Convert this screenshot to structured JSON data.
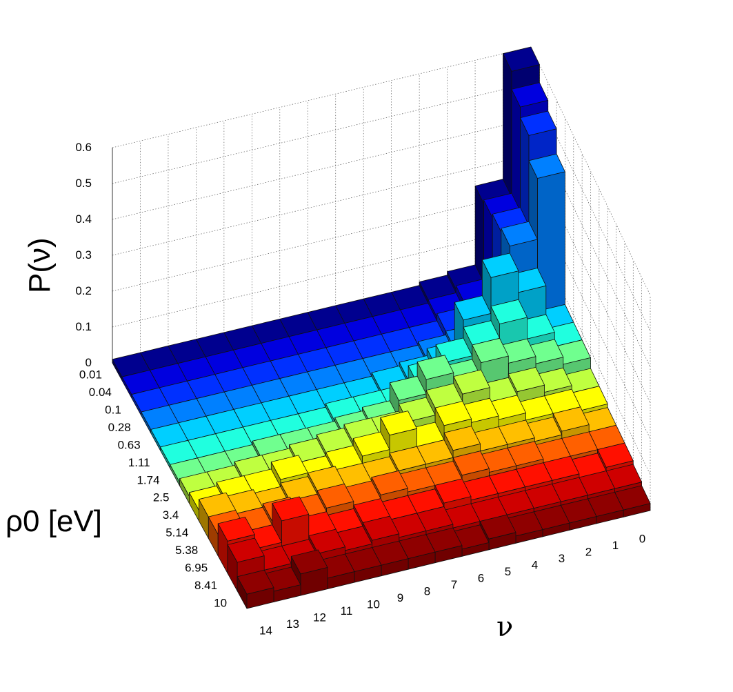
{
  "chart_data": {
    "type": "bar3d",
    "title": "",
    "zlabel": "P(ν)",
    "xlabel": "ν",
    "ylabel": "ρ0 [eV]",
    "x_categories": [
      "0",
      "1",
      "2",
      "3",
      "4",
      "5",
      "6",
      "7",
      "8",
      "9",
      "10",
      "11",
      "12",
      "13",
      "14"
    ],
    "y_categories": [
      "0.01",
      "0.04",
      "0.1",
      "0.28",
      "0.63",
      "1.11",
      "1.74",
      "2.5",
      "3.4",
      "5.14",
      "5.38",
      "6.95",
      "8.41",
      "10"
    ],
    "z_ticks": [
      "0",
      "0.1",
      "0.2",
      "0.3",
      "0.4",
      "0.5",
      "0.6"
    ],
    "zlim": [
      0,
      0.6
    ],
    "colormap": "jet",
    "row_colors": [
      "#00008f",
      "#0000df",
      "#0030ff",
      "#0080ff",
      "#00cfff",
      "#20ffdf",
      "#70ff8f",
      "#bfff40",
      "#ffff00",
      "#ffbf00",
      "#ff6000",
      "#ff1000",
      "#cf0000",
      "#8f0000"
    ],
    "values": [
      [
        0.6,
        0.25,
        0.03,
        0.02,
        0.01,
        0.01,
        0.01,
        0.01,
        0.01,
        0.01,
        0.01,
        0.01,
        0.01,
        0.01,
        0.01
      ],
      [
        0.55,
        0.26,
        0.04,
        0.02,
        0.01,
        0.01,
        0.01,
        0.01,
        0.01,
        0.01,
        0.01,
        0.01,
        0.01,
        0.01,
        0.01
      ],
      [
        0.52,
        0.27,
        0.04,
        0.03,
        0.01,
        0.01,
        0.01,
        0.01,
        0.01,
        0.01,
        0.01,
        0.01,
        0.01,
        0.01,
        0.01
      ],
      [
        0.45,
        0.28,
        0.05,
        0.03,
        0.02,
        0.01,
        0.01,
        0.01,
        0.01,
        0.01,
        0.01,
        0.01,
        0.01,
        0.01,
        0.01
      ],
      [
        0.08,
        0.2,
        0.26,
        0.16,
        0.05,
        0.03,
        0.02,
        0.01,
        0.01,
        0.01,
        0.01,
        0.01,
        0.01,
        0.01,
        0.01
      ],
      [
        0.08,
        0.12,
        0.18,
        0.14,
        0.11,
        0.07,
        0.02,
        0.02,
        0.02,
        0.01,
        0.01,
        0.01,
        0.01,
        0.01,
        0.01
      ],
      [
        0.08,
        0.1,
        0.12,
        0.14,
        0.1,
        0.13,
        0.09,
        0.04,
        0.03,
        0.02,
        0.02,
        0.02,
        0.01,
        0.01,
        0.01
      ],
      [
        0.05,
        0.07,
        0.09,
        0.08,
        0.12,
        0.1,
        0.08,
        0.06,
        0.06,
        0.05,
        0.04,
        0.03,
        0.03,
        0.02,
        0.02
      ],
      [
        0.05,
        0.06,
        0.06,
        0.08,
        0.09,
        0.1,
        0.06,
        0.11,
        0.07,
        0.05,
        0.04,
        0.06,
        0.04,
        0.04,
        0.03
      ],
      [
        0.04,
        0.06,
        0.05,
        0.06,
        0.06,
        0.08,
        0.06,
        0.06,
        0.05,
        0.05,
        0.06,
        0.05,
        0.04,
        0.05,
        0.06
      ],
      [
        0.04,
        0.04,
        0.04,
        0.05,
        0.05,
        0.06,
        0.05,
        0.05,
        0.06,
        0.05,
        0.06,
        0.05,
        0.06,
        0.05,
        0.06
      ],
      [
        0.04,
        0.03,
        0.04,
        0.04,
        0.04,
        0.04,
        0.05,
        0.04,
        0.04,
        0.05,
        0.04,
        0.05,
        0.11,
        0.05,
        0.09
      ],
      [
        0.03,
        0.03,
        0.03,
        0.03,
        0.03,
        0.03,
        0.03,
        0.04,
        0.04,
        0.05,
        0.04,
        0.05,
        0.04,
        0.04,
        0.08
      ],
      [
        0.02,
        0.02,
        0.02,
        0.02,
        0.02,
        0.03,
        0.02,
        0.03,
        0.03,
        0.03,
        0.03,
        0.03,
        0.06,
        0.03,
        0.04
      ]
    ]
  }
}
